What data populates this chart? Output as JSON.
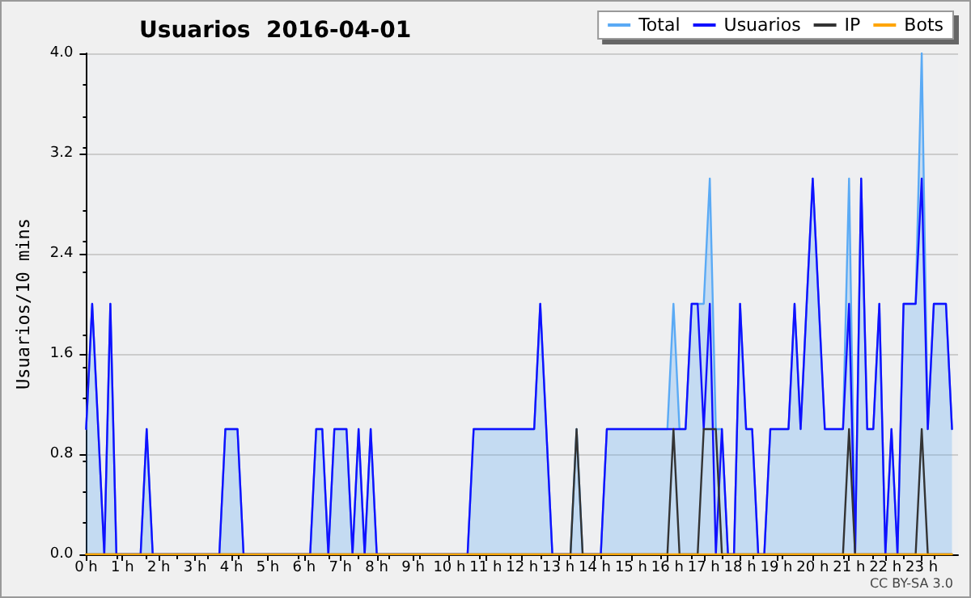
{
  "chart_data": {
    "type": "line",
    "title": "Usuarios  2016-04-01",
    "ylabel": "Usuarios/10 mins",
    "annotations": [
      "CC BY-SA 3.0"
    ],
    "xlim": [
      0,
      24
    ],
    "xticks": [
      {
        "value": 0,
        "label": "0 h"
      },
      {
        "value": 1,
        "label": "1 h"
      },
      {
        "value": 2,
        "label": "2 h"
      },
      {
        "value": 3,
        "label": "3 h"
      },
      {
        "value": 4,
        "label": "4 h"
      },
      {
        "value": 5,
        "label": "5 h"
      },
      {
        "value": 6,
        "label": "6 h"
      },
      {
        "value": 7,
        "label": "7 h"
      },
      {
        "value": 8,
        "label": "8 h"
      },
      {
        "value": 9,
        "label": "9 h"
      },
      {
        "value": 10,
        "label": "10 h"
      },
      {
        "value": 11,
        "label": "11 h"
      },
      {
        "value": 12,
        "label": "12 h"
      },
      {
        "value": 13,
        "label": "13 h"
      },
      {
        "value": 14,
        "label": "14 h"
      },
      {
        "value": 15,
        "label": "15 h"
      },
      {
        "value": 16,
        "label": "16 h"
      },
      {
        "value": 17,
        "label": "17 h"
      },
      {
        "value": 18,
        "label": "18 h"
      },
      {
        "value": 19,
        "label": "19 h"
      },
      {
        "value": 20,
        "label": "20 h"
      },
      {
        "value": 21,
        "label": "21 h"
      },
      {
        "value": 22,
        "label": "22 h"
      },
      {
        "value": 23,
        "label": "23 h"
      }
    ],
    "ylim": [
      0,
      4
    ],
    "yticks": [
      {
        "value": 0,
        "label": "0.0"
      },
      0.8,
      1.6,
      2.4,
      3.2,
      {
        "value": 4,
        "label": "4.0"
      }
    ],
    "grid": "y",
    "legend": "top right",
    "marker": "none",
    "line_style": "solid",
    "series": [
      {
        "name": "Total",
        "type": "area",
        "color": "#5aaaf5",
        "x": [
          0,
          0.167,
          0.5,
          0.667,
          0.833,
          1.5,
          1.667,
          1.833,
          3.667,
          3.833,
          4.167,
          4.333,
          6.167,
          6.333,
          6.5,
          6.667,
          6.833,
          7.167,
          7.333,
          7.5,
          7.667,
          7.833,
          8,
          10.5,
          10.667,
          12.333,
          12.5,
          12.833,
          13.333,
          13.5,
          13.667,
          14.167,
          14.333,
          16,
          16.167,
          16.333,
          16.5,
          16.667,
          16.833,
          17,
          17.167,
          17.333,
          17.5,
          17.667,
          17.833,
          18,
          18.167,
          18.333,
          18.5,
          18.667,
          18.833,
          19.333,
          19.5,
          19.667,
          19.833,
          20,
          20.333,
          20.833,
          21,
          21.167,
          21.333,
          21.5,
          21.667,
          21.833,
          22,
          22.167,
          22.333,
          22.5,
          22.833,
          23,
          23.167,
          23.333,
          23.667,
          23.833
        ],
        "values": [
          1,
          2,
          0,
          2,
          0,
          0,
          1,
          0,
          0,
          1,
          1,
          0,
          0,
          1,
          1,
          0,
          1,
          1,
          0,
          1,
          0,
          1,
          0,
          0,
          1,
          1,
          2,
          0,
          0,
          1,
          0,
          0,
          1,
          1,
          2,
          1,
          1,
          2,
          2,
          2,
          3,
          1,
          1,
          0,
          0,
          2,
          1,
          1,
          0,
          0,
          1,
          1,
          2,
          1,
          2,
          3,
          1,
          1,
          3,
          0,
          3,
          1,
          1,
          2,
          0,
          1,
          0,
          2,
          2,
          4,
          1,
          2,
          2,
          1
        ]
      },
      {
        "name": "Usuarios",
        "color": "#1010ff",
        "x": [
          0,
          0.167,
          0.5,
          0.667,
          0.833,
          1.5,
          1.667,
          1.833,
          3.667,
          3.833,
          4.167,
          4.333,
          6.167,
          6.333,
          6.5,
          6.667,
          6.833,
          7.167,
          7.333,
          7.5,
          7.667,
          7.833,
          8,
          10.5,
          10.667,
          12.333,
          12.5,
          12.833,
          14.167,
          14.333,
          16.5,
          16.667,
          16.833,
          17,
          17.167,
          17.333,
          17.5,
          17.667,
          17.833,
          18,
          18.167,
          18.333,
          18.5,
          18.667,
          18.833,
          19.333,
          19.5,
          19.667,
          19.833,
          20,
          20.333,
          20.833,
          21,
          21.167,
          21.333,
          21.5,
          21.667,
          21.833,
          22,
          22.167,
          22.333,
          22.5,
          22.833,
          23,
          23.167,
          23.333,
          23.667,
          23.833
        ],
        "values": [
          1,
          2,
          0,
          2,
          0,
          0,
          1,
          0,
          0,
          1,
          1,
          0,
          0,
          1,
          1,
          0,
          1,
          1,
          0,
          1,
          0,
          1,
          0,
          0,
          1,
          1,
          2,
          0,
          0,
          1,
          1,
          2,
          2,
          1,
          2,
          0,
          1,
          0,
          0,
          2,
          1,
          1,
          0,
          0,
          1,
          1,
          2,
          1,
          2,
          3,
          1,
          1,
          2,
          0,
          3,
          1,
          1,
          2,
          0,
          1,
          0,
          2,
          2,
          3,
          1,
          2,
          2,
          1
        ]
      },
      {
        "name": "IP",
        "color": "#333333",
        "x": [
          0,
          13.333,
          13.5,
          13.667,
          16,
          16.167,
          16.333,
          16.833,
          17,
          17.333,
          17.5,
          20.833,
          21,
          21.167,
          22.833,
          23,
          23.167,
          23.833
        ],
        "values": [
          0,
          0,
          1,
          0,
          0,
          1,
          0,
          0,
          1,
          1,
          0,
          0,
          1,
          0,
          0,
          1,
          0,
          0
        ]
      },
      {
        "name": "Bots",
        "color": "#ffa500",
        "x": [
          0,
          23.833
        ],
        "values": [
          0,
          0
        ]
      }
    ]
  }
}
